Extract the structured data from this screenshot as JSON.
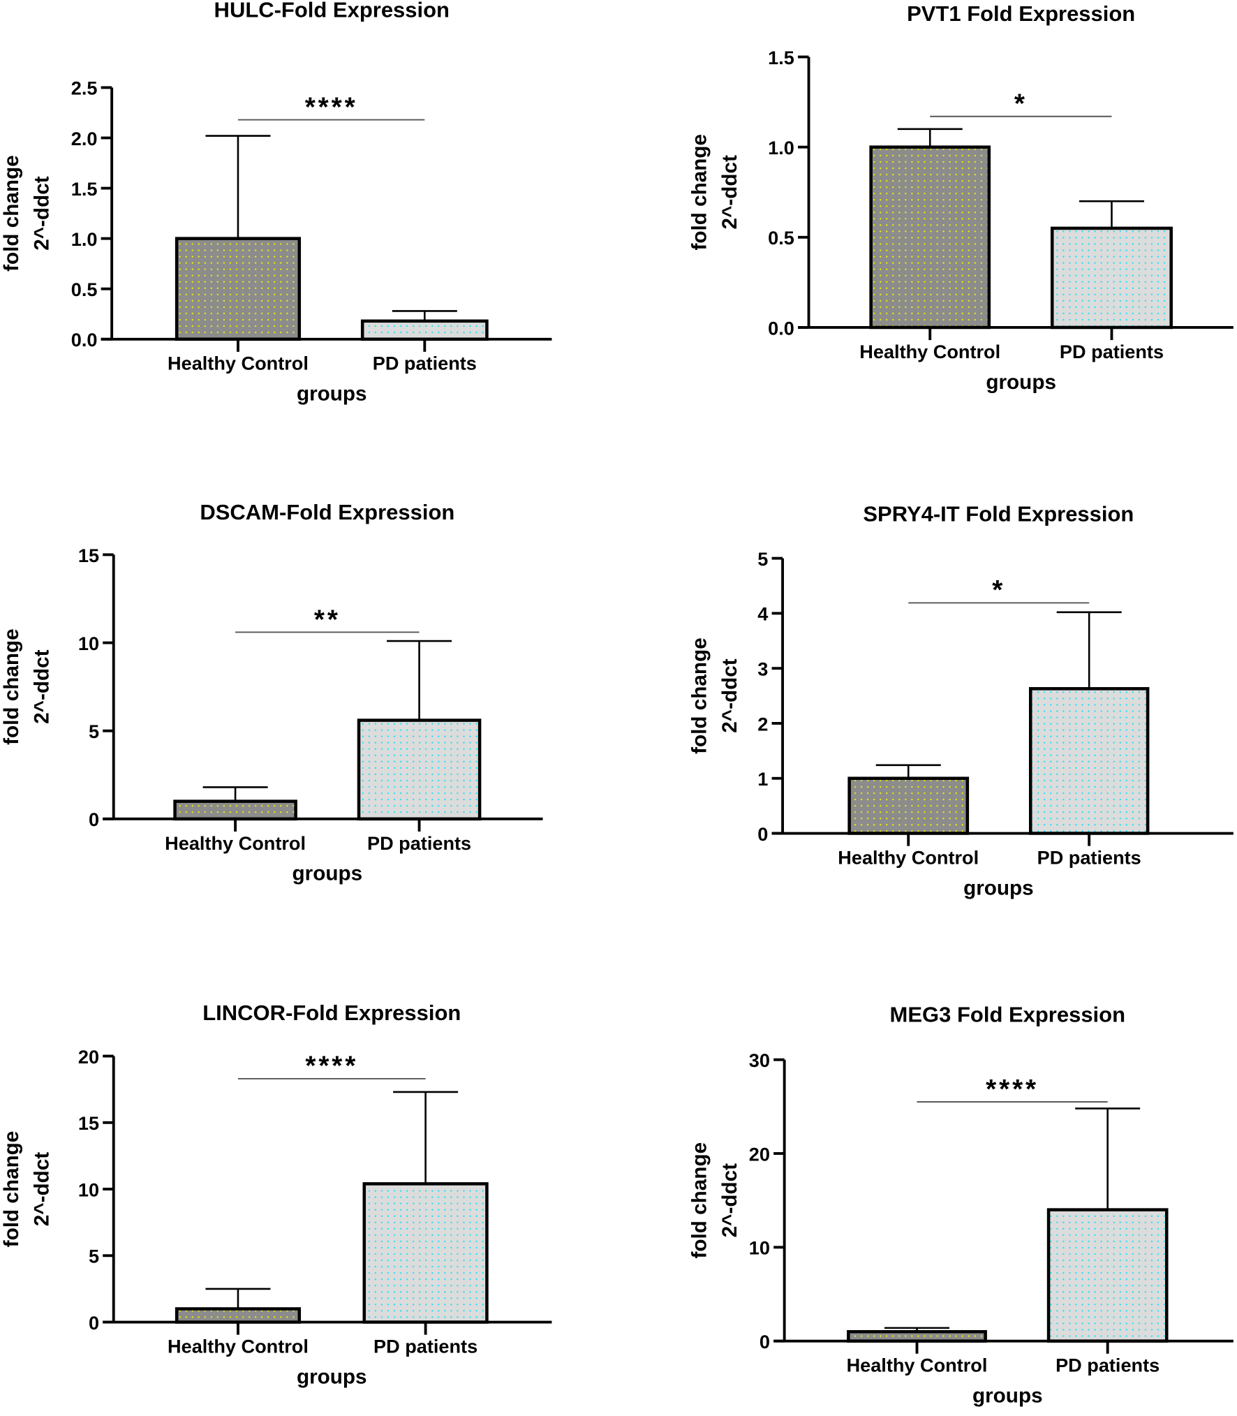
{
  "chart_data": [
    {
      "type": "bar",
      "title": "HULC-Fold Expression",
      "xlabel": "groups",
      "ylabel": [
        "fold change",
        "2^-ddct"
      ],
      "categories": [
        "Healthy Control",
        "PD patients"
      ],
      "values": [
        1.0,
        0.18
      ],
      "error_upper": [
        2.02,
        0.28
      ],
      "ylim": [
        0,
        2.5
      ],
      "yticks": [
        "0.0",
        "0.5",
        "1.0",
        "1.5",
        "2.0",
        "2.5"
      ],
      "ytick_values": [
        0,
        0.5,
        1,
        1.5,
        2,
        2.5
      ],
      "significance": {
        "label": "****",
        "level": 2.18
      }
    },
    {
      "type": "bar",
      "title": "PVT1 Fold Expression",
      "xlabel": "groups",
      "ylabel": [
        "fold change",
        "2^-ddct"
      ],
      "categories": [
        "Healthy Control",
        "PD patients"
      ],
      "values": [
        1.0,
        0.55
      ],
      "error_upper": [
        1.1,
        0.7
      ],
      "ylim": [
        0,
        1.5
      ],
      "yticks": [
        "0.0",
        "0.5",
        "1.0",
        "1.5"
      ],
      "ytick_values": [
        0,
        0.5,
        1,
        1.5
      ],
      "significance": {
        "label": "*",
        "level": 1.17
      }
    },
    {
      "type": "bar",
      "title": "DSCAM-Fold Expression",
      "xlabel": "groups",
      "ylabel": [
        "fold change",
        "2^-ddct"
      ],
      "categories": [
        "Healthy Control",
        "PD patients"
      ],
      "values": [
        1.0,
        5.6
      ],
      "error_upper": [
        1.8,
        10.1
      ],
      "ylim": [
        0,
        15
      ],
      "yticks": [
        "0",
        "5",
        "10",
        "15"
      ],
      "ytick_values": [
        0,
        5,
        10,
        15
      ],
      "significance": {
        "label": "**",
        "level": 10.6
      }
    },
    {
      "type": "bar",
      "title": "SPRY4-IT Fold Expression",
      "xlabel": "groups",
      "ylabel": [
        "fold change",
        "2^-ddct"
      ],
      "categories": [
        "Healthy Control",
        "PD patients"
      ],
      "values": [
        1.0,
        2.63
      ],
      "error_upper": [
        1.24,
        4.02
      ],
      "ylim": [
        0,
        5
      ],
      "yticks": [
        "0",
        "1",
        "2",
        "3",
        "4",
        "5"
      ],
      "ytick_values": [
        0,
        1,
        2,
        3,
        4,
        5
      ],
      "significance": {
        "label": "*",
        "level": 4.19
      }
    },
    {
      "type": "bar",
      "title": "LINCOR-Fold Expression",
      "xlabel": "groups",
      "ylabel": [
        "fold change",
        "2^-ddct"
      ],
      "categories": [
        "Healthy Control",
        "PD patients"
      ],
      "values": [
        1.0,
        10.4
      ],
      "error_upper": [
        2.5,
        17.3
      ],
      "ylim": [
        0,
        20
      ],
      "yticks": [
        "0",
        "5",
        "10",
        "15",
        "20"
      ],
      "ytick_values": [
        0,
        5,
        10,
        15,
        20
      ],
      "significance": {
        "label": "****",
        "level": 18.3
      }
    },
    {
      "type": "bar",
      "title": "MEG3 Fold Expression",
      "xlabel": "groups",
      "ylabel": [
        "fold change",
        "2^-ddct"
      ],
      "categories": [
        "Healthy Control",
        "PD patients"
      ],
      "values": [
        1.0,
        14.0
      ],
      "error_upper": [
        1.4,
        24.8
      ],
      "ylim": [
        0,
        30
      ],
      "yticks": [
        "0",
        "10",
        "20",
        "30"
      ],
      "ytick_values": [
        0,
        10,
        20,
        30
      ],
      "significance": {
        "label": "****",
        "level": 25.5
      }
    }
  ],
  "colors": {
    "control_fill": "#8c8c8c",
    "control_dot": "#f0f000",
    "patient_fill": "#dcdcdc",
    "patient_dot": "#20e0f0",
    "axis": "#000000",
    "sig_line": "#555555"
  }
}
